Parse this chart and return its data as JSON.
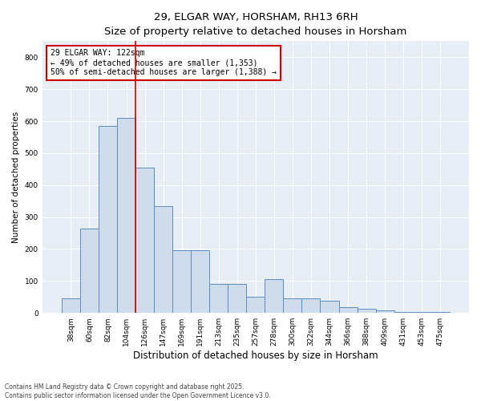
{
  "title1": "29, ELGAR WAY, HORSHAM, RH13 6RH",
  "title2": "Size of property relative to detached houses in Horsham",
  "xlabel": "Distribution of detached houses by size in Horsham",
  "ylabel": "Number of detached properties",
  "categories": [
    "38sqm",
    "60sqm",
    "82sqm",
    "104sqm",
    "126sqm",
    "147sqm",
    "169sqm",
    "191sqm",
    "213sqm",
    "235sqm",
    "257sqm",
    "278sqm",
    "300sqm",
    "322sqm",
    "344sqm",
    "366sqm",
    "388sqm",
    "409sqm",
    "431sqm",
    "453sqm",
    "475sqm"
  ],
  "values": [
    45,
    265,
    585,
    610,
    455,
    335,
    195,
    195,
    90,
    90,
    50,
    105,
    45,
    45,
    38,
    18,
    13,
    8,
    2,
    2,
    4
  ],
  "bar_color": "#cfdcec",
  "bar_edge_color": "#5b8cc8",
  "vline_x_index": 4,
  "vline_color": "#cc0000",
  "annotation_text": "29 ELGAR WAY: 122sqm\n← 49% of detached houses are smaller (1,353)\n50% of semi-detached houses are larger (1,388) →",
  "annotation_box_color": "#ffffff",
  "annotation_box_edge": "#cc0000",
  "ylim": [
    0,
    850
  ],
  "yticks": [
    0,
    100,
    200,
    300,
    400,
    500,
    600,
    700,
    800
  ],
  "footer": "Contains HM Land Registry data © Crown copyright and database right 2025.\nContains public sector information licensed under the Open Government Licence v3.0.",
  "bg_color": "#e8eef6",
  "fig_bg": "#ffffff",
  "grid_color": "#ffffff",
  "title1_fontsize": 9.5,
  "title2_fontsize": 9,
  "xlabel_fontsize": 8.5,
  "ylabel_fontsize": 7.5,
  "tick_fontsize": 6.5,
  "footer_fontsize": 5.5,
  "annot_fontsize": 7
}
